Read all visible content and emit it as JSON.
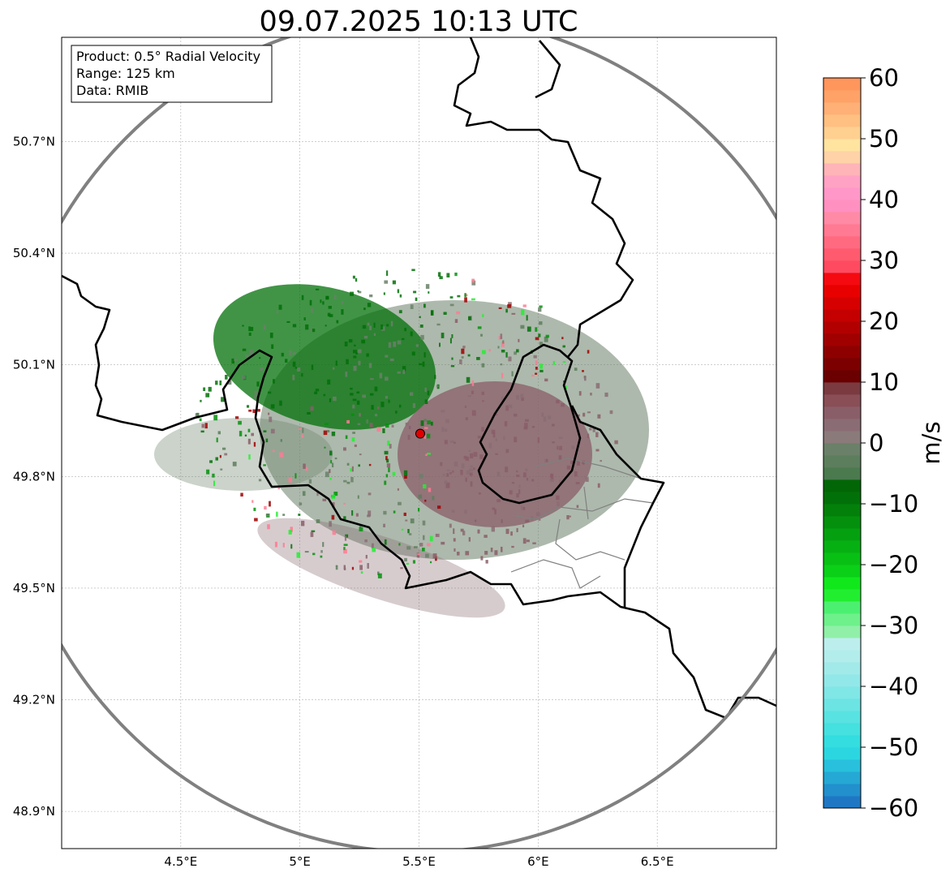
{
  "map": {
    "title": "09.07.2025 10:13 UTC",
    "extent": {
      "lon_min": 4.0,
      "lon_max": 7.0,
      "lat_min": 48.8,
      "lat_max": 50.98
    },
    "radar_site": {
      "lon": 5.505,
      "lat": 49.915
    },
    "lon_ticks": [
      {
        "value": 4.5,
        "label": "4.5°E"
      },
      {
        "value": 5.0,
        "label": "5°E"
      },
      {
        "value": 5.5,
        "label": "5.5°E"
      },
      {
        "value": 6.0,
        "label": "6°E"
      },
      {
        "value": 6.5,
        "label": "6.5°E"
      }
    ],
    "lat_ticks": [
      {
        "value": 50.7,
        "label": "50.7°N"
      },
      {
        "value": 50.4,
        "label": "50.4°N"
      },
      {
        "value": 50.1,
        "label": "50.1°N"
      },
      {
        "value": 49.8,
        "label": "49.8°N"
      },
      {
        "value": 49.5,
        "label": "49.5°N"
      },
      {
        "value": 49.2,
        "label": "49.2°N"
      },
      {
        "value": 48.9,
        "label": "48.9°N"
      }
    ],
    "info_box": {
      "product": "Product: 0.5° Radial Velocity",
      "range": "Range: 125 km",
      "data": "Data: RMIB"
    },
    "colors": {
      "range_ring": "#808080",
      "borders": "#000000",
      "gridlines": "#b0b0b0"
    }
  },
  "colorbar": {
    "unit_label": "m/s",
    "vmin": -60,
    "vmax": 60,
    "ticks": [
      {
        "value": 60,
        "label": "60"
      },
      {
        "value": 50,
        "label": "50"
      },
      {
        "value": 40,
        "label": "40"
      },
      {
        "value": 30,
        "label": "30"
      },
      {
        "value": 20,
        "label": "20"
      },
      {
        "value": 10,
        "label": "10"
      },
      {
        "value": 0,
        "label": "0"
      },
      {
        "value": -10,
        "label": "−10"
      },
      {
        "value": -20,
        "label": "−20"
      },
      {
        "value": -30,
        "label": "−30"
      },
      {
        "value": -40,
        "label": "−40"
      },
      {
        "value": -50,
        "label": "−50"
      },
      {
        "value": -60,
        "label": "−60"
      }
    ],
    "bands": [
      {
        "from": -60,
        "to": -58,
        "color": "#1f77c4"
      },
      {
        "from": -58,
        "to": -56,
        "color": "#2290cc"
      },
      {
        "from": -56,
        "to": -54,
        "color": "#25a8d4"
      },
      {
        "from": -54,
        "to": -52,
        "color": "#28c0dc"
      },
      {
        "from": -52,
        "to": -50,
        "color": "#2bd6e0"
      },
      {
        "from": -50,
        "to": -48,
        "color": "#33dde0"
      },
      {
        "from": -48,
        "to": -46,
        "color": "#45e0e0"
      },
      {
        "from": -46,
        "to": -44,
        "color": "#58e2e2"
      },
      {
        "from": -44,
        "to": -42,
        "color": "#6ce4e4"
      },
      {
        "from": -42,
        "to": -40,
        "color": "#80e6e6"
      },
      {
        "from": -40,
        "to": -38,
        "color": "#92e8e8"
      },
      {
        "from": -38,
        "to": -36,
        "color": "#a2eaea"
      },
      {
        "from": -36,
        "to": -34,
        "color": "#b2eceb"
      },
      {
        "from": -34,
        "to": -32,
        "color": "#bdeeee"
      },
      {
        "from": -32,
        "to": -30,
        "color": "#90f0a8"
      },
      {
        "from": -30,
        "to": -28,
        "color": "#6ef08a"
      },
      {
        "from": -28,
        "to": -26,
        "color": "#4cf070"
      },
      {
        "from": -26,
        "to": -24,
        "color": "#22ee30"
      },
      {
        "from": -24,
        "to": -22,
        "color": "#10e81c"
      },
      {
        "from": -22,
        "to": -20,
        "color": "#0ad018"
      },
      {
        "from": -20,
        "to": -18,
        "color": "#08c014"
      },
      {
        "from": -18,
        "to": -16,
        "color": "#06b012"
      },
      {
        "from": -16,
        "to": -14,
        "color": "#05a010"
      },
      {
        "from": -14,
        "to": -12,
        "color": "#04900c"
      },
      {
        "from": -12,
        "to": -10,
        "color": "#03800a"
      },
      {
        "from": -10,
        "to": -8,
        "color": "#027008"
      },
      {
        "from": -8,
        "to": -6,
        "color": "#026606"
      },
      {
        "from": -6,
        "to": -4,
        "color": "#4a7a4e"
      },
      {
        "from": -4,
        "to": -2,
        "color": "#5c7e5c"
      },
      {
        "from": -2,
        "to": 0,
        "color": "#6a8068"
      },
      {
        "from": 0,
        "to": 2,
        "color": "#8a7a7a"
      },
      {
        "from": 2,
        "to": 4,
        "color": "#8a6c74"
      },
      {
        "from": 4,
        "to": 6,
        "color": "#8a5e68"
      },
      {
        "from": 6,
        "to": 8,
        "color": "#8a4e56"
      },
      {
        "from": 8,
        "to": 10,
        "color": "#7a3a40"
      },
      {
        "from": 10,
        "to": 12,
        "color": "#6a0000"
      },
      {
        "from": 12,
        "to": 14,
        "color": "#7c0000"
      },
      {
        "from": 14,
        "to": 16,
        "color": "#8e0000"
      },
      {
        "from": 16,
        "to": 18,
        "color": "#a00000"
      },
      {
        "from": 18,
        "to": 20,
        "color": "#b20000"
      },
      {
        "from": 20,
        "to": 22,
        "color": "#c40000"
      },
      {
        "from": 22,
        "to": 24,
        "color": "#d60000"
      },
      {
        "from": 24,
        "to": 26,
        "color": "#e80000"
      },
      {
        "from": 26,
        "to": 28,
        "color": "#f40a10"
      },
      {
        "from": 28,
        "to": 30,
        "color": "#ff4a60"
      },
      {
        "from": 30,
        "to": 32,
        "color": "#ff5a6e"
      },
      {
        "from": 32,
        "to": 34,
        "color": "#ff6a80"
      },
      {
        "from": 34,
        "to": 36,
        "color": "#ff7a92"
      },
      {
        "from": 36,
        "to": 38,
        "color": "#ff8aa6"
      },
      {
        "from": 38,
        "to": 40,
        "color": "#ff90c0"
      },
      {
        "from": 40,
        "to": 42,
        "color": "#ff98c8"
      },
      {
        "from": 42,
        "to": 44,
        "color": "#ffa2c4"
      },
      {
        "from": 44,
        "to": 46,
        "color": "#ffb4b8"
      },
      {
        "from": 46,
        "to": 48,
        "color": "#ffd2a8"
      },
      {
        "from": 48,
        "to": 50,
        "color": "#ffe4a0"
      },
      {
        "from": 50,
        "to": 52,
        "color": "#ffd090"
      },
      {
        "from": 52,
        "to": 54,
        "color": "#ffc082"
      },
      {
        "from": 54,
        "to": 56,
        "color": "#ffb076"
      },
      {
        "from": 56,
        "to": 58,
        "color": "#ffa268"
      },
      {
        "from": 58,
        "to": 60,
        "color": "#ff965c"
      }
    ]
  }
}
